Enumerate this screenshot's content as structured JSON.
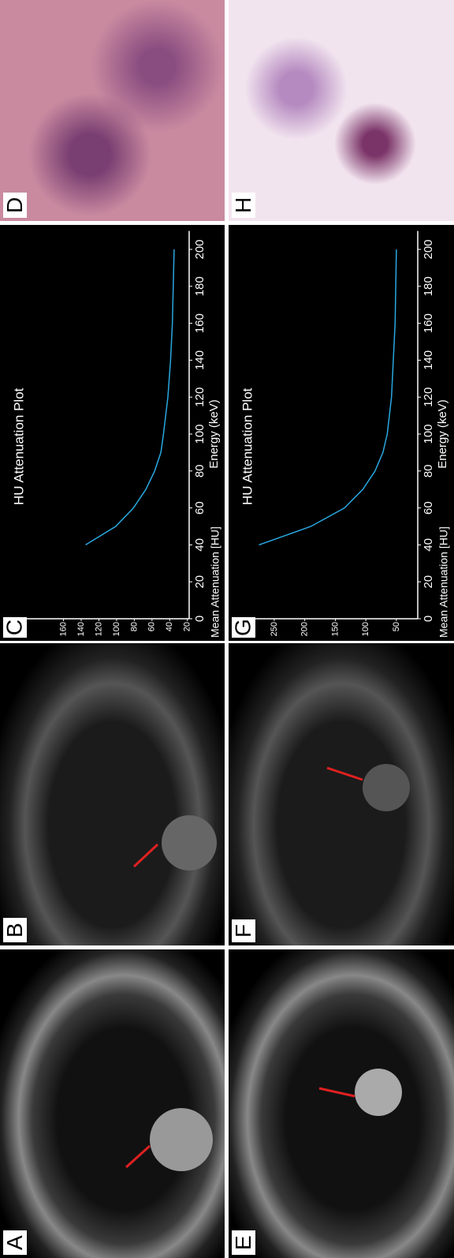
{
  "panels": [
    "A",
    "B",
    "D",
    "E",
    "F",
    "H"
  ],
  "chart_data": [
    {
      "type": "line",
      "panel_label": "C",
      "title": "HU Attenuation Plot",
      "x_label": "Energy (keV)",
      "y_label": "Mean Attenuation [HU]",
      "x": [
        40,
        50,
        60,
        70,
        80,
        90,
        100,
        120,
        140,
        160,
        180,
        200
      ],
      "values": [
        135,
        101,
        81,
        67,
        57,
        50,
        47,
        42,
        39,
        37,
        36,
        35
      ],
      "color": "#29a8e0",
      "xlim": [
        0,
        210
      ],
      "xticks": [
        0,
        20,
        40,
        60,
        80,
        100,
        120,
        140,
        160,
        180,
        200
      ],
      "ylim": [
        18,
        205
      ],
      "yticks": [
        20,
        40,
        60,
        80,
        100,
        120,
        140,
        160
      ]
    },
    {
      "type": "line",
      "panel_label": "G",
      "title": "HU Attenuation Plot",
      "x_label": "Energy (keV)",
      "y_label": "Mean Attenuation [HU]",
      "x": [
        40,
        50,
        60,
        70,
        80,
        90,
        100,
        120,
        140,
        160,
        180,
        200
      ],
      "values": [
        275,
        190,
        135,
        105,
        85,
        72,
        65,
        58,
        55,
        52,
        51,
        50
      ],
      "color": "#29a8e0",
      "xlim": [
        0,
        210
      ],
      "xticks": [
        0,
        20,
        40,
        60,
        80,
        100,
        120,
        140,
        160,
        180,
        200
      ],
      "ylim": [
        15,
        286
      ],
      "yticks": [
        50,
        100,
        150,
        200,
        250
      ]
    }
  ]
}
